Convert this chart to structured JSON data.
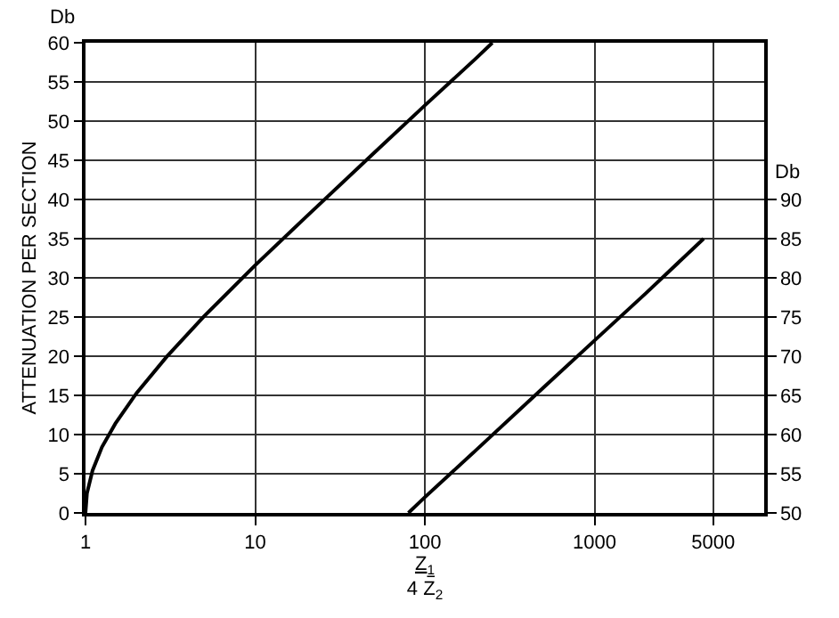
{
  "chart_data": {
    "type": "line",
    "xlabel": "Z$_{1}$\n4 Z$_{2}$",
    "ylabel": "ATTENUATION PER SECTION",
    "y2label": "Db",
    "annotations": [
      "Db"
    ],
    "log": "x",
    "grid": true,
    "marker": "none",
    "line_style": "solid",
    "xlim": [
      1,
      10000
    ],
    "xticks": [
      1,
      10,
      100,
      1000,
      5000
    ],
    "ylim": [
      0,
      60
    ],
    "yticks": [
      0,
      5,
      10,
      15,
      20,
      25,
      30,
      35,
      40,
      45,
      50,
      55,
      60
    ],
    "y2lim": [
      50,
      110
    ],
    "y2ticks": [
      50,
      55,
      60,
      65,
      70,
      75,
      80,
      85,
      90
    ],
    "series": [
      {
        "color": "#000000",
        "x": [
          1,
          1.02,
          1.1,
          1.25,
          1.5,
          2,
          3,
          5,
          10,
          20,
          50,
          100,
          200,
          250
        ],
        "values": [
          0,
          2.5,
          5.4,
          8.4,
          11.4,
          15.3,
          19.9,
          25.1,
          31.6,
          37.8,
          45.9,
          52,
          58,
          60
        ]
      },
      {
        "color": "#000000",
        "axis": "y2",
        "x": [
          80,
          100,
          200,
          500,
          1000,
          2000,
          4400
        ],
        "values": [
          50,
          52,
          58,
          66,
          72,
          78,
          85
        ]
      }
    ]
  }
}
